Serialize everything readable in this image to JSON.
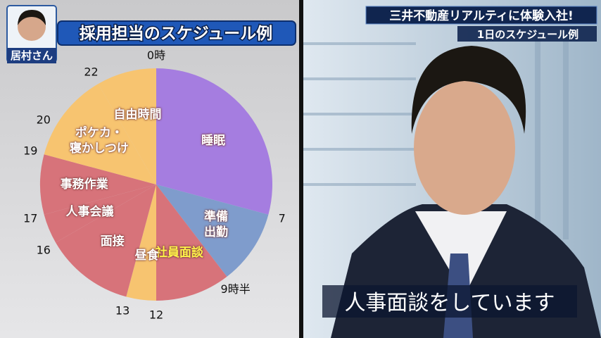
{
  "chart_data": {
    "type": "pie",
    "title": "採用担当のスケジュール例",
    "categories": [
      "睡眠",
      "準備\n出勤",
      "社員面談",
      "昼食",
      "面接",
      "人事会議",
      "事務作業",
      "ポケカ・\n寝かしつけ",
      "自由時間"
    ],
    "values": [
      7,
      2.5,
      2.5,
      1,
      3,
      1,
      2,
      3,
      2
    ],
    "colors": [
      "#a57de0",
      "#7f9ccc",
      "#d7737a",
      "#f7c470",
      "#d7737a",
      "#d7737a",
      "#d7737a",
      "#f7c470",
      "#f7c470"
    ],
    "label_colors": [
      "#ffffff",
      "#ffffff",
      "#fff24a",
      "#ffffff",
      "#ffffff",
      "#ffffff",
      "#ffffff",
      "#ffffff",
      "#ffffff"
    ],
    "ticks": [
      {
        "value": 0,
        "label": "0時"
      },
      7,
      {
        "value": 9.5,
        "label": "9時半"
      },
      12,
      13,
      16,
      17,
      19,
      20,
      22
    ]
  },
  "screen": {
    "person": "居村さん",
    "banner": "三井不動産リアルティに体験入社!",
    "banner_sub": "1日のスケジュール例",
    "caption": "人事面談をしています"
  }
}
